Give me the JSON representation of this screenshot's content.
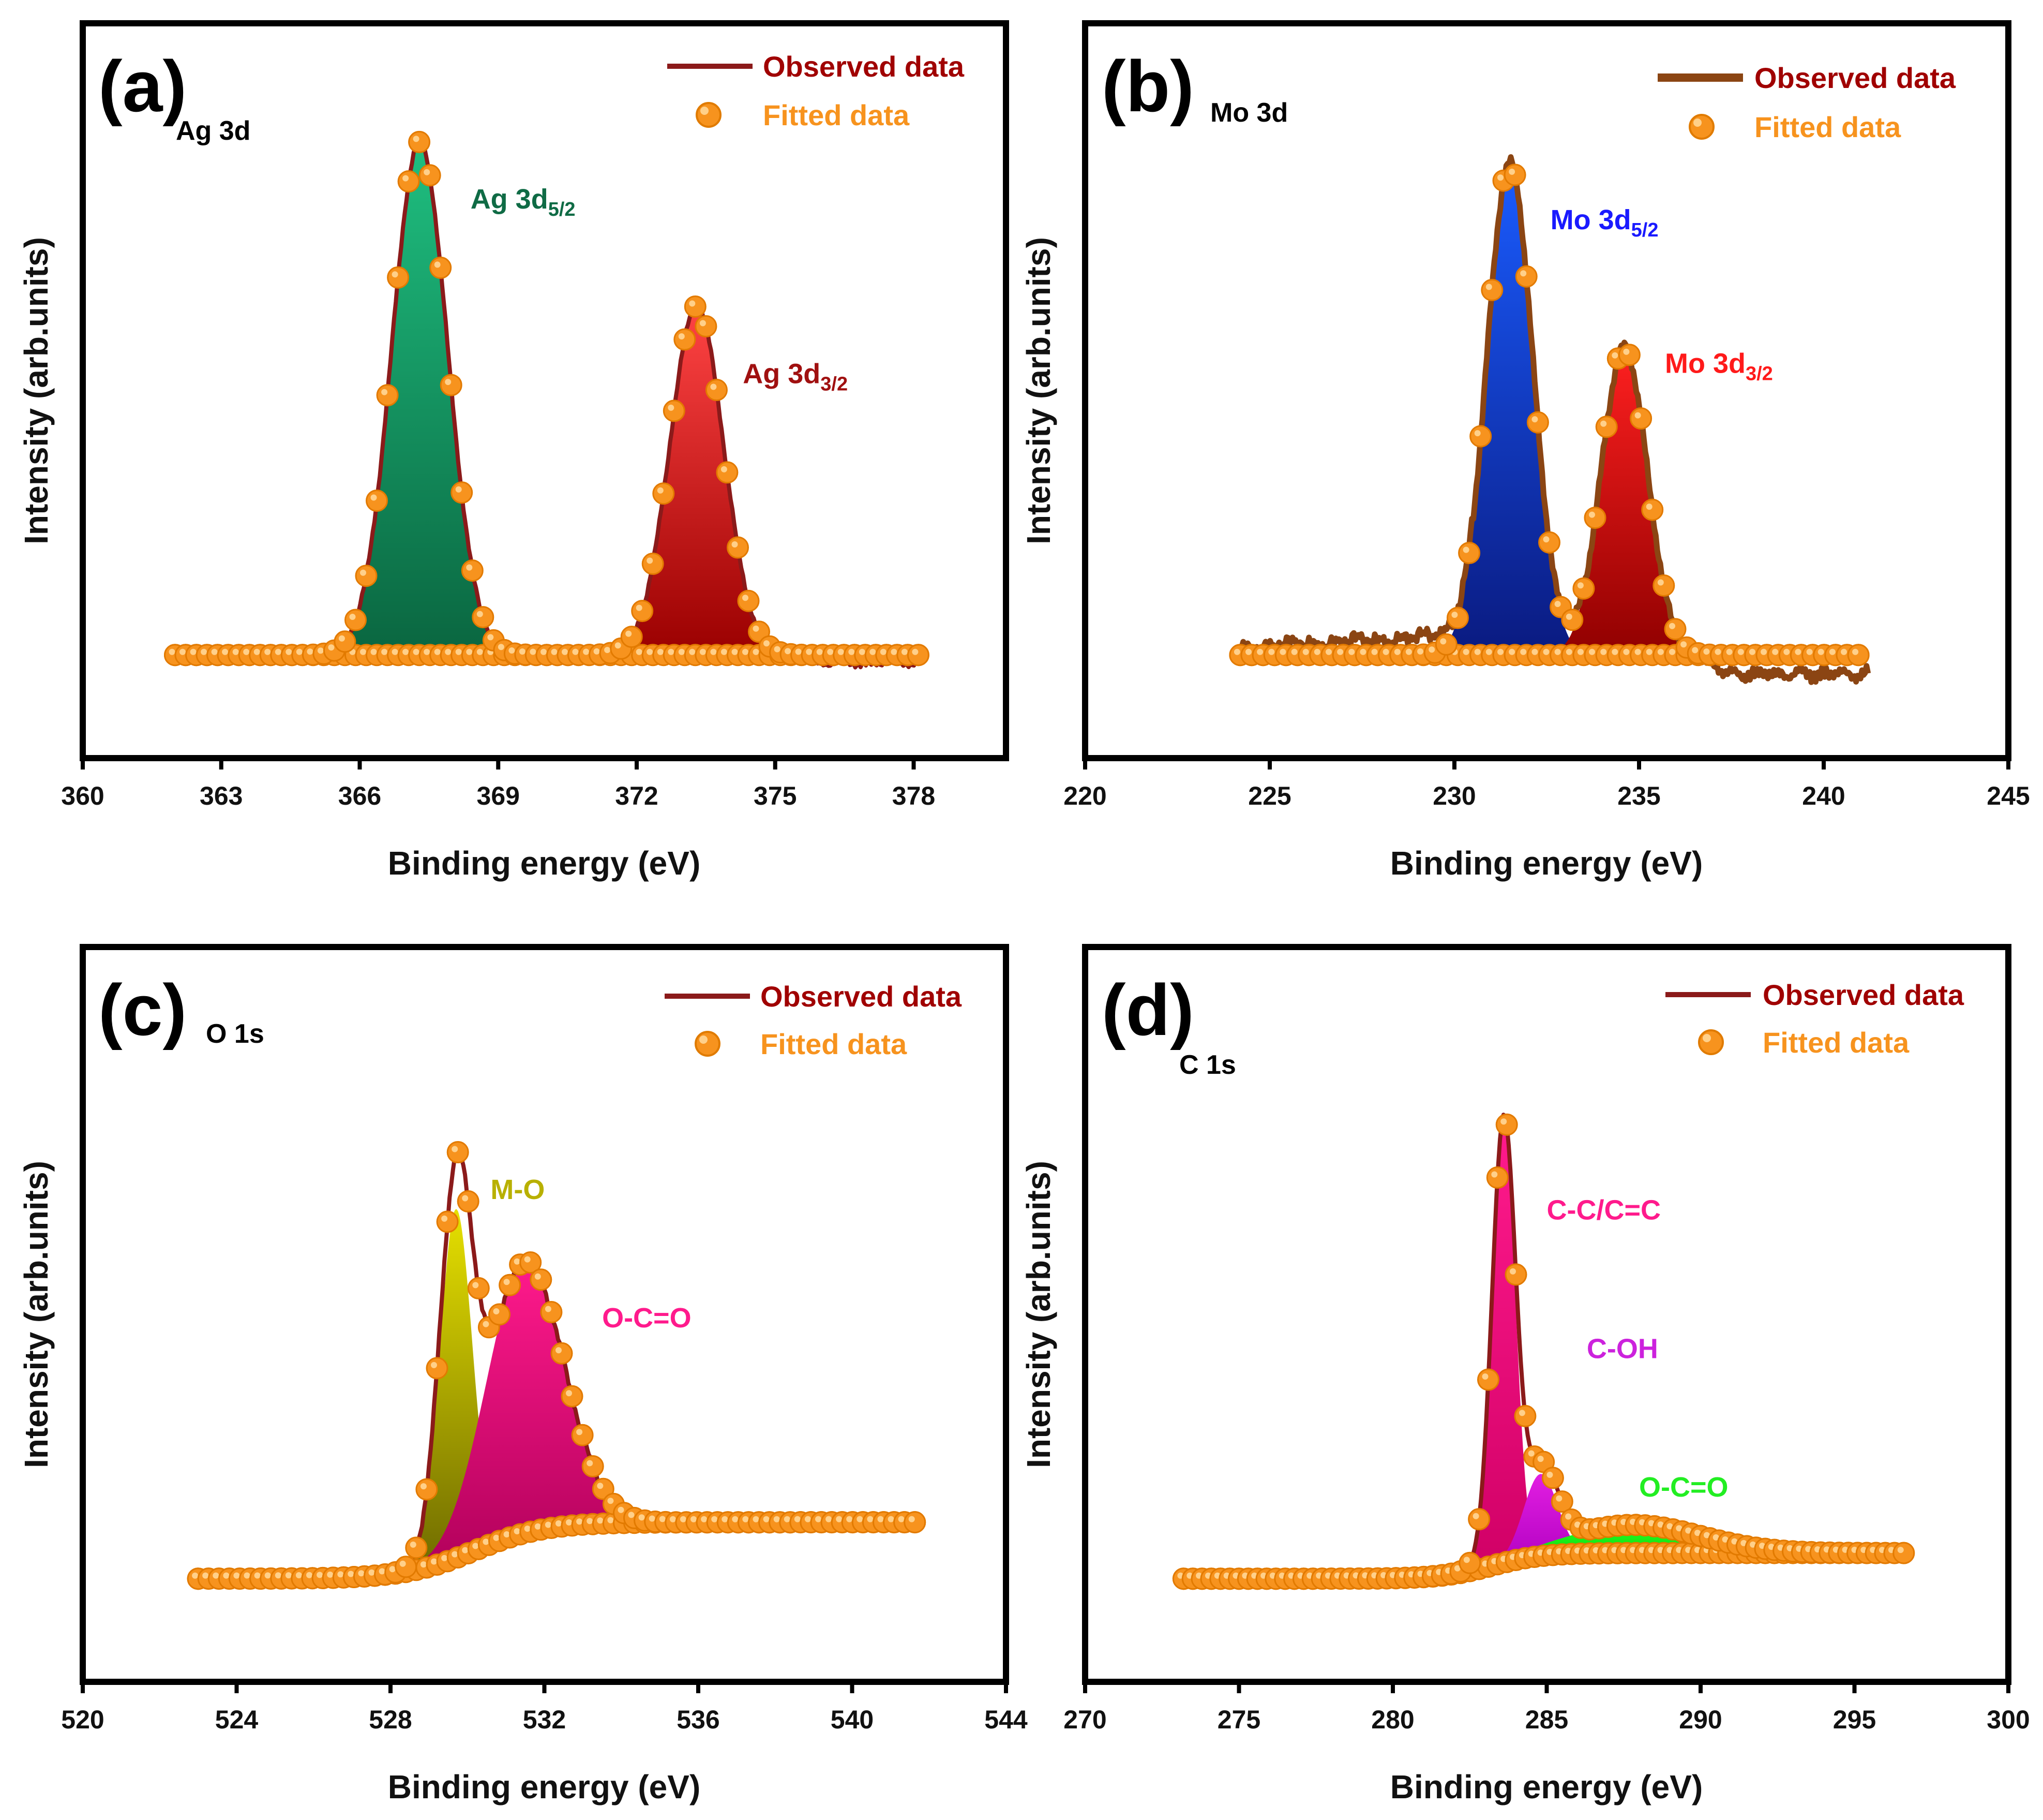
{
  "colors": {
    "observed": "#8b1a1a",
    "observed_b": "#8b4513",
    "fitted": "#f7931e",
    "fitted_light": "#ffd08a",
    "legend_observed_text": "#a00000",
    "legend_fitted_text": "#f7931e"
  },
  "chart_data": [
    {
      "panel": "(a)",
      "type": "line",
      "title": "Ag 3d",
      "xlabel": "Binding energy (eV)",
      "ylabel": "Intensity (arb.units)",
      "xlim": [
        360,
        380
      ],
      "ylim": [
        -0.08,
        1.08
      ],
      "xticks": [
        "360",
        "363",
        "366",
        "369",
        "372",
        "375",
        "378"
      ],
      "xtick_values": [
        360,
        363,
        366,
        369,
        372,
        375,
        378
      ],
      "data_range": [
        362,
        378.2
      ],
      "legend": {
        "observed": "Observed data",
        "fitted": "Fitted data"
      },
      "series": [
        {
          "name": "Observed data",
          "role": "observed",
          "color": "#8b1a1a",
          "wobble": 0.006
        },
        {
          "name": "Fitted data",
          "role": "fitted",
          "color": "#f7931e",
          "step": 0.23
        }
      ],
      "peaks": [
        {
          "label": "Ag 3d",
          "sub": "5/2",
          "center": 367.3,
          "height": 1.0,
          "width": 0.6,
          "color_top": "#1fbf80",
          "color_bottom": "#0a6640",
          "label_color": "#0f6b45",
          "label_x": 368.4,
          "label_y": 0.87
        },
        {
          "label": "Ag 3d",
          "sub": "3/2",
          "center": 373.3,
          "height": 0.68,
          "width": 0.58,
          "color_top": "#ff4444",
          "color_bottom": "#9a0000",
          "label_color": "#a01010",
          "label_x": 374.3,
          "label_y": 0.53
        }
      ],
      "background": "flat",
      "baseline": 0,
      "observed_tail": {
        "from": 375.2,
        "dip": 0.02
      }
    },
    {
      "panel": "(b)",
      "type": "line",
      "title": "Mo 3d",
      "xlabel": "Binding energy (eV)",
      "ylabel": "Intensity (arb.units)",
      "xlim": [
        220,
        245
      ],
      "ylim": [
        -0.08,
        1.08
      ],
      "xticks": [
        "220",
        "225",
        "230",
        "235",
        "240",
        "245"
      ],
      "xtick_values": [
        220,
        225,
        230,
        235,
        240,
        245
      ],
      "data_range": [
        224.2,
        241.2
      ],
      "legend": {
        "observed": "Observed data",
        "fitted": "Fitted data"
      },
      "series": [
        {
          "name": "Observed data",
          "role": "observed",
          "color": "#8b4513",
          "wobble": 0.012
        },
        {
          "name": "Fitted data",
          "role": "fitted",
          "color": "#f7931e",
          "step": 0.31
        }
      ],
      "peaks": [
        {
          "label": "Mo 3d",
          "sub": "5/2",
          "center": 231.5,
          "height": 0.96,
          "width": 0.62,
          "color_top": "#1a5cff",
          "color_bottom": "#0a1a80",
          "label_color": "#1a1aff",
          "label_x": 232.6,
          "label_y": 0.83
        },
        {
          "label": "Mo 3d",
          "sub": "3/2",
          "center": 234.6,
          "height": 0.6,
          "width": 0.62,
          "color_top": "#ff2020",
          "color_bottom": "#900000",
          "label_color": "#ff1a1a",
          "label_x": 235.7,
          "label_y": 0.55
        }
      ],
      "background": "flat",
      "baseline": 0,
      "observed_shoulder": {
        "from": 224.2,
        "to": 230.5,
        "level": 0.04
      },
      "observed_tail": {
        "from": 236.6,
        "dip": 0.045
      }
    },
    {
      "panel": "(c)",
      "type": "line",
      "title": "O 1s",
      "xlabel": "Binding energy (eV)",
      "ylabel": "Intensity (arb.units)",
      "xlim": [
        520,
        544
      ],
      "ylim": [
        -0.08,
        1.08
      ],
      "xticks": [
        "520",
        "524",
        "528",
        "532",
        "536",
        "540",
        "544"
      ],
      "xtick_values": [
        520,
        524,
        528,
        532,
        536,
        540,
        544
      ],
      "data_range": [
        523,
        541.8
      ],
      "legend": {
        "observed": "Observed data",
        "fitted": "Fitted data"
      },
      "series": [
        {
          "name": "Observed data",
          "role": "observed",
          "color": "#8b1a1a",
          "wobble": 0.008
        },
        {
          "name": "Fitted data",
          "role": "fitted",
          "color": "#f7931e",
          "step": 0.27
        }
      ],
      "peaks": [
        {
          "label": "M-O",
          "center": 529.7,
          "height": 0.68,
          "width": 0.42,
          "color_top": "#e6e000",
          "color_bottom": "#6e6a00",
          "label_color": "#b8b000",
          "label_x": 530.6,
          "label_y": 0.74
        },
        {
          "label": "O-C=O",
          "center": 531.5,
          "height": 0.53,
          "width": 1.0,
          "color_top": "#ff1a8c",
          "color_bottom": "#b0005a",
          "label_color": "#ff1a8c",
          "label_x": 533.5,
          "label_y": 0.49
        }
      ],
      "background": "shirley",
      "baseline": 0,
      "bg_step": 0.11,
      "bg_center": 530.2,
      "bg_width": 0.9
    },
    {
      "panel": "(d)",
      "type": "line",
      "title": "C 1s",
      "xlabel": "Binding energy (eV)",
      "ylabel": "Intensity (arb.units)",
      "xlim": [
        270,
        300
      ],
      "ylim": [
        -0.08,
        1.08
      ],
      "xticks": [
        "270",
        "275",
        "280",
        "285",
        "290",
        "295",
        "300"
      ],
      "xtick_values": [
        270,
        275,
        280,
        285,
        290,
        295,
        300
      ],
      "data_range": [
        273.2,
        296.8
      ],
      "legend": {
        "observed": "Observed data",
        "fitted": "Fitted data"
      },
      "series": [
        {
          "name": "Observed data",
          "role": "observed",
          "color": "#8b1a1a",
          "wobble": 0
        },
        {
          "name": "Fitted data",
          "role": "fitted",
          "color": "#f7931e",
          "step": 0.3
        }
      ],
      "peaks": [
        {
          "label": "C-C/C=C",
          "center": 283.6,
          "height": 0.85,
          "width": 0.38,
          "color_top": "#ff1a8c",
          "color_bottom": "#d00066",
          "label_color": "#ff1a8c",
          "label_x": 285.0,
          "label_y": 0.7
        },
        {
          "label": "C-OH",
          "center": 284.8,
          "height": 0.16,
          "width": 0.55,
          "color_top": "#e21fe2",
          "color_bottom": "#b000c0",
          "label_color": "#cc22dd",
          "label_x": 286.3,
          "label_y": 0.43
        },
        {
          "label": "O-C=O",
          "center": 287.8,
          "height": 0.055,
          "width": 2.2,
          "color_top": "#22ff22",
          "color_bottom": "#00c000",
          "label_color": "#22ee22",
          "label_x": 288.0,
          "label_y": 0.16
        }
      ],
      "background": "shirley",
      "baseline": 0,
      "bg_step": 0.05,
      "bg_center": 283.2,
      "bg_width": 0.8
    }
  ]
}
